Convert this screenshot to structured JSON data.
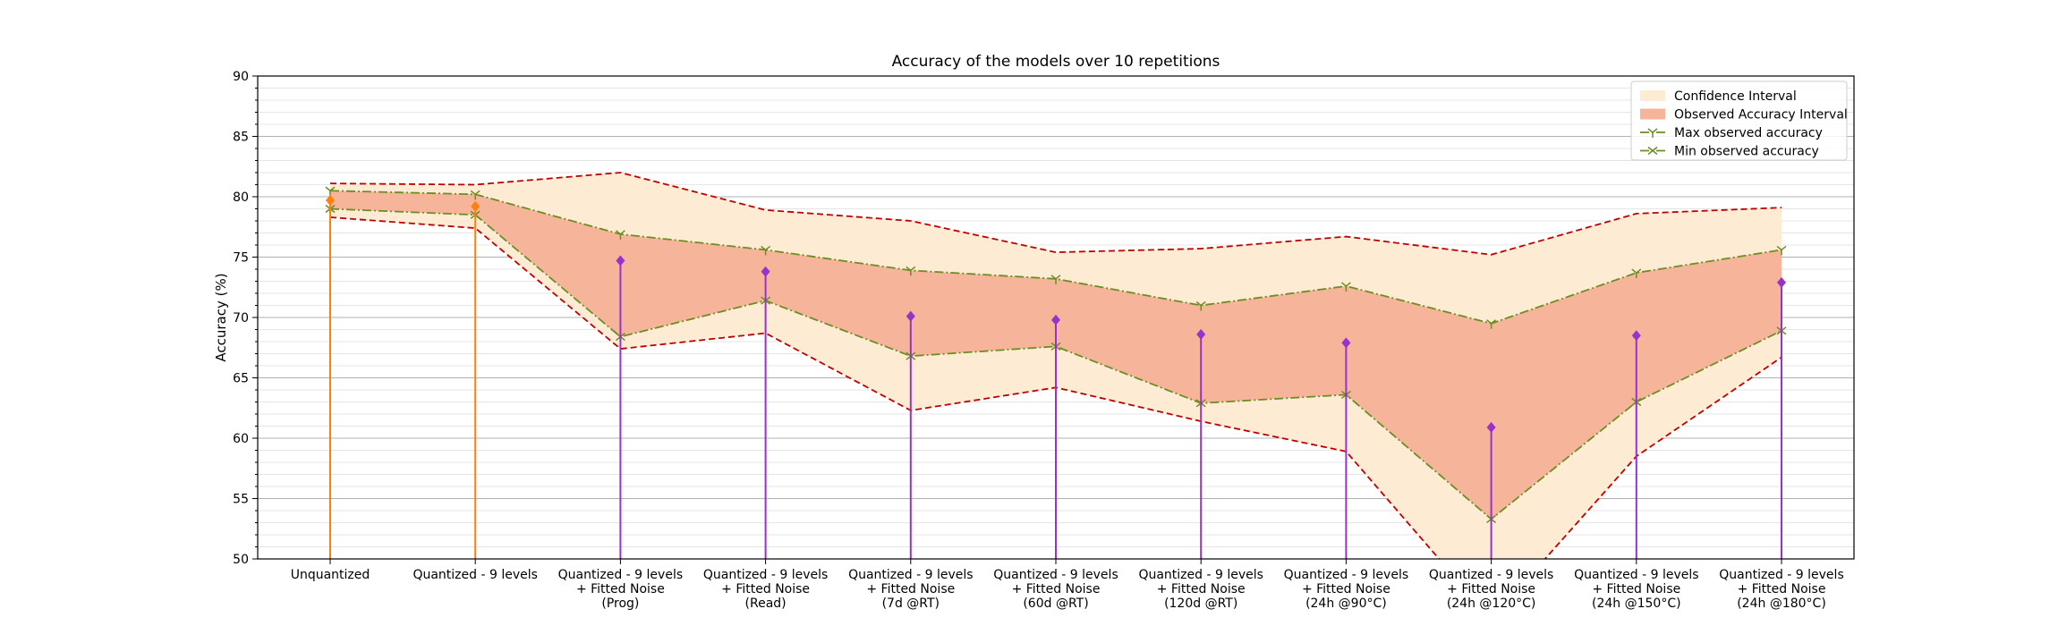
{
  "chart_data": {
    "type": "line",
    "title": "Accuracy of the models over 10 repetitions",
    "xlabel": "",
    "ylabel": "Accuracy (%)",
    "ylim": [
      50,
      90
    ],
    "yticks": [
      50,
      55,
      60,
      65,
      70,
      75,
      80,
      85,
      90
    ],
    "grid": true,
    "legend_position": "top-right",
    "categories": [
      "Unquantized",
      "Quantized - 9 levels",
      "Quantized - 9 levels\n+ Fitted Noise\n(Prog)",
      "Quantized - 9 levels\n+ Fitted Noise\n(Read)",
      "Quantized - 9 levels\n+ Fitted Noise\n(7d @RT)",
      "Quantized - 9 levels\n+ Fitted Noise\n(60d @RT)",
      "Quantized - 9 levels\n+ Fitted Noise\n(120d @RT)",
      "Quantized - 9 levels\n+ Fitted Noise\n(24h @90°C)",
      "Quantized - 9 levels\n+ Fitted Noise\n(24h @120°C)",
      "Quantized - 9 levels\n+ Fitted Noise\n(24h @150°C)",
      "Quantized - 9 levels\n+ Fitted Noise\n(24h @180°C)"
    ],
    "confidence_upper": [
      81.1,
      81.0,
      82.0,
      78.9,
      78.0,
      75.4,
      75.7,
      76.7,
      75.2,
      78.6,
      79.1
    ],
    "confidence_lower": [
      78.3,
      77.4,
      67.4,
      68.7,
      62.3,
      64.2,
      61.4,
      58.9,
      45.0,
      58.5,
      66.7
    ],
    "max_observed": [
      80.5,
      80.2,
      76.9,
      75.6,
      73.9,
      73.2,
      71.0,
      72.6,
      69.5,
      73.7,
      75.6
    ],
    "min_observed": [
      79.0,
      78.5,
      68.4,
      71.4,
      66.8,
      67.6,
      62.9,
      63.6,
      53.3,
      63.0,
      68.9
    ],
    "mean": [
      79.7,
      79.2,
      74.7,
      73.8,
      70.1,
      69.8,
      68.6,
      67.9,
      60.9,
      68.5,
      72.9
    ],
    "mean_colors": [
      "#ff7f0e",
      "#ff7f0e",
      "#9932cc",
      "#9932cc",
      "#9932cc",
      "#9932cc",
      "#9932cc",
      "#9932cc",
      "#9932cc",
      "#9932cc",
      "#9932cc"
    ],
    "legend": [
      {
        "label": "Confidence Interval",
        "kind": "patch",
        "color": "#fdebd3"
      },
      {
        "label": "Observed Accuracy Interval",
        "kind": "patch",
        "color": "#f6b49a"
      },
      {
        "label": "Max observed accuracy",
        "kind": "line",
        "color": "#6b8e23",
        "marker": "tri-down"
      },
      {
        "label": "Min observed accuracy",
        "kind": "line",
        "color": "#6b8e23",
        "marker": "x"
      }
    ],
    "colors": {
      "confidence_fill": "#fdebd3",
      "observed_fill": "#f6b49a",
      "confidence_line": "#c00000",
      "observed_line": "#6b8e23",
      "minor_grid": "#dddddd",
      "major_grid": "#b0b0b0"
    }
  }
}
